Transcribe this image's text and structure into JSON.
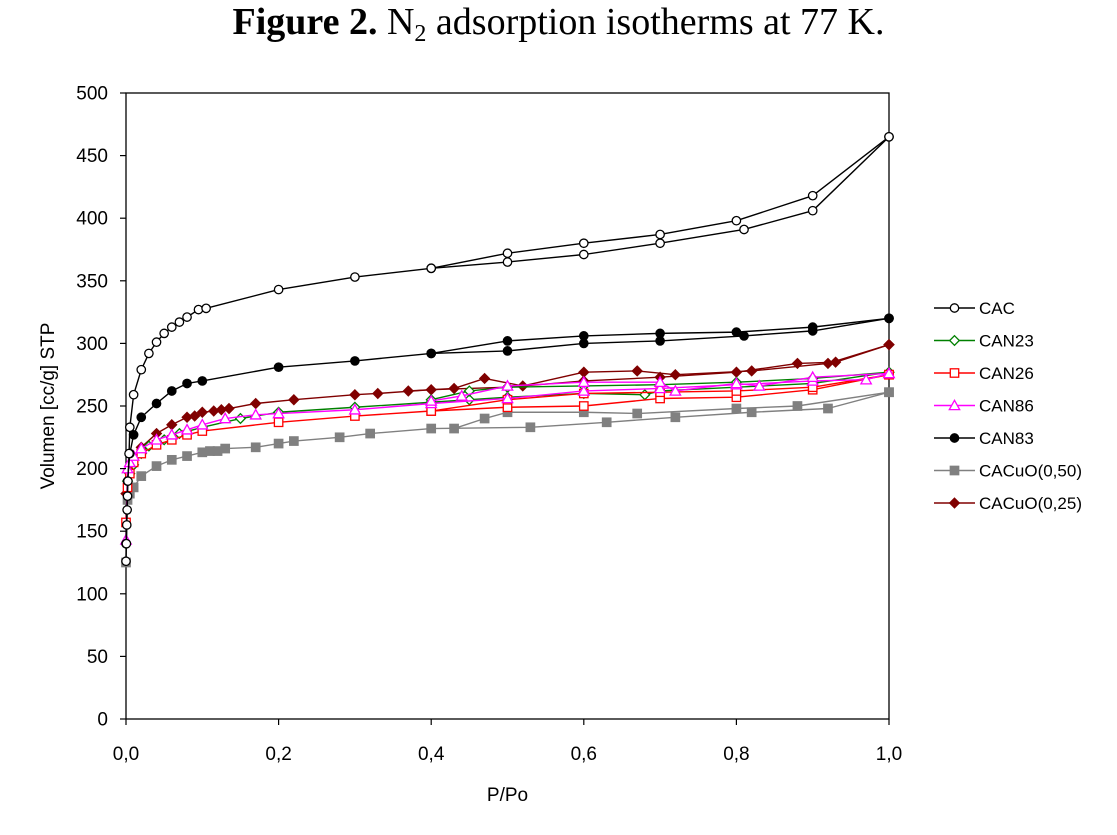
{
  "title": {
    "bold": "Figure 2.",
    "text_pre": " N",
    "subscript": "2",
    "text_post": " adsorption isotherms at 77 K."
  },
  "chart_data": {
    "type": "line",
    "xlabel": "P/Po",
    "ylabel": "Volumen [cc/g] STP",
    "xlim": [
      0,
      1
    ],
    "ylim": [
      0,
      500
    ],
    "xticks": [
      0,
      0.2,
      0.4,
      0.6,
      0.8,
      1.0
    ],
    "xtick_labels": [
      "0,0",
      "0,2",
      "0,4",
      "0,6",
      "0,8",
      "1,0"
    ],
    "yticks": [
      0,
      50,
      100,
      150,
      200,
      250,
      300,
      350,
      400,
      450,
      500
    ],
    "grid": false,
    "legend_position": "right",
    "series": [
      {
        "name": "CAC",
        "color": "#000000",
        "marker": "circle-open",
        "adsorption": [
          [
            0.0,
            126
          ],
          [
            0.0005,
            140
          ],
          [
            0.001,
            155
          ],
          [
            0.0015,
            167
          ],
          [
            0.002,
            178
          ],
          [
            0.0025,
            190
          ],
          [
            0.004,
            212
          ],
          [
            0.005,
            233
          ],
          [
            0.01,
            259
          ],
          [
            0.02,
            279
          ],
          [
            0.03,
            292
          ],
          [
            0.04,
            301
          ],
          [
            0.05,
            308
          ],
          [
            0.06,
            313
          ],
          [
            0.07,
            317
          ],
          [
            0.08,
            321
          ],
          [
            0.095,
            327
          ],
          [
            0.105,
            328
          ],
          [
            0.2,
            343
          ],
          [
            0.3,
            353
          ],
          [
            0.4,
            360
          ],
          [
            0.5,
            365
          ],
          [
            0.6,
            371
          ],
          [
            0.7,
            380
          ],
          [
            0.81,
            391
          ],
          [
            0.9,
            406
          ],
          [
            1.0,
            465
          ]
        ],
        "desorption": [
          [
            1.0,
            465
          ],
          [
            0.9,
            418
          ],
          [
            0.8,
            398
          ],
          [
            0.7,
            387
          ],
          [
            0.6,
            380
          ],
          [
            0.5,
            372
          ],
          [
            0.4,
            360
          ]
        ]
      },
      {
        "name": "CAN23",
        "color": "#008000",
        "marker": "diamond-open",
        "adsorption": [
          [
            0.0,
            140
          ],
          [
            0.002,
            190
          ],
          [
            0.005,
            196
          ],
          [
            0.01,
            203
          ],
          [
            0.02,
            212
          ],
          [
            0.03,
            218
          ],
          [
            0.05,
            223
          ],
          [
            0.07,
            228
          ],
          [
            0.1,
            233
          ],
          [
            0.15,
            240
          ],
          [
            0.2,
            245
          ],
          [
            0.3,
            249
          ],
          [
            0.4,
            253
          ],
          [
            0.45,
            255
          ],
          [
            0.5,
            257
          ],
          [
            0.6,
            260
          ],
          [
            0.68,
            259
          ],
          [
            0.7,
            262
          ],
          [
            0.8,
            265
          ],
          [
            0.9,
            268
          ],
          [
            1.0,
            277
          ]
        ],
        "desorption": [
          [
            1.0,
            277
          ],
          [
            0.9,
            272
          ],
          [
            0.8,
            269
          ],
          [
            0.7,
            267
          ],
          [
            0.6,
            266
          ],
          [
            0.5,
            265
          ],
          [
            0.45,
            262
          ],
          [
            0.4,
            255
          ]
        ]
      },
      {
        "name": "CAN26",
        "color": "#ff0000",
        "marker": "square-open",
        "adsorption": [
          [
            0.0,
            157
          ],
          [
            0.002,
            185
          ],
          [
            0.005,
            196
          ],
          [
            0.01,
            205
          ],
          [
            0.02,
            212
          ],
          [
            0.04,
            219
          ],
          [
            0.06,
            223
          ],
          [
            0.08,
            227
          ],
          [
            0.1,
            230
          ],
          [
            0.2,
            237
          ],
          [
            0.3,
            242
          ],
          [
            0.4,
            246
          ],
          [
            0.5,
            249
          ],
          [
            0.6,
            250
          ],
          [
            0.7,
            256
          ],
          [
            0.8,
            257
          ],
          [
            0.9,
            263
          ],
          [
            1.0,
            275
          ]
        ],
        "desorption": [
          [
            1.0,
            275
          ],
          [
            0.9,
            265
          ],
          [
            0.8,
            262
          ],
          [
            0.7,
            261
          ],
          [
            0.6,
            260
          ],
          [
            0.5,
            255
          ],
          [
            0.4,
            246
          ]
        ]
      },
      {
        "name": "CAN86",
        "color": "#ff00ff",
        "marker": "triangle-open",
        "adsorption": [
          [
            0.0,
            143
          ],
          [
            0.002,
            200
          ],
          [
            0.005,
            205
          ],
          [
            0.01,
            210
          ],
          [
            0.02,
            216
          ],
          [
            0.04,
            223
          ],
          [
            0.06,
            227
          ],
          [
            0.08,
            231
          ],
          [
            0.1,
            235
          ],
          [
            0.13,
            240
          ],
          [
            0.17,
            243
          ],
          [
            0.2,
            244
          ],
          [
            0.3,
            247
          ],
          [
            0.4,
            252
          ],
          [
            0.5,
            256
          ],
          [
            0.6,
            262
          ],
          [
            0.7,
            264
          ],
          [
            0.8,
            267
          ],
          [
            0.9,
            270
          ],
          [
            0.97,
            271
          ],
          [
            1.0,
            276
          ]
        ],
        "desorption": [
          [
            1.0,
            276
          ],
          [
            0.9,
            273
          ],
          [
            0.83,
            266
          ],
          [
            0.8,
            268
          ],
          [
            0.72,
            262
          ],
          [
            0.7,
            269
          ],
          [
            0.6,
            269
          ],
          [
            0.5,
            266
          ],
          [
            0.44,
            258
          ],
          [
            0.4,
            254
          ]
        ]
      },
      {
        "name": "CAN83",
        "color": "#000000",
        "marker": "circle-filled",
        "adsorption": [
          [
            0.0,
            140
          ],
          [
            0.002,
            190
          ],
          [
            0.005,
            212
          ],
          [
            0.01,
            227
          ],
          [
            0.02,
            241
          ],
          [
            0.04,
            252
          ],
          [
            0.06,
            262
          ],
          [
            0.08,
            268
          ],
          [
            0.1,
            270
          ],
          [
            0.2,
            281
          ],
          [
            0.3,
            286
          ],
          [
            0.4,
            292
          ],
          [
            0.5,
            294
          ],
          [
            0.6,
            300
          ],
          [
            0.7,
            302
          ],
          [
            0.81,
            306
          ],
          [
            0.9,
            310
          ],
          [
            1.0,
            320
          ]
        ],
        "desorption": [
          [
            1.0,
            320
          ],
          [
            0.9,
            313
          ],
          [
            0.8,
            309
          ],
          [
            0.7,
            308
          ],
          [
            0.6,
            306
          ],
          [
            0.5,
            302
          ],
          [
            0.4,
            292
          ]
        ]
      },
      {
        "name": "CACuO(0,50)",
        "color": "#808080",
        "marker": "square-filled",
        "adsorption": [
          [
            0.0,
            125
          ],
          [
            0.002,
            175
          ],
          [
            0.005,
            180
          ],
          [
            0.01,
            185
          ],
          [
            0.02,
            194
          ],
          [
            0.04,
            202
          ],
          [
            0.06,
            207
          ],
          [
            0.08,
            210
          ],
          [
            0.1,
            213
          ],
          [
            0.11,
            214
          ],
          [
            0.12,
            214
          ],
          [
            0.13,
            216
          ],
          [
            0.17,
            217
          ],
          [
            0.2,
            220
          ],
          [
            0.22,
            222
          ],
          [
            0.28,
            225
          ],
          [
            0.32,
            228
          ],
          [
            0.4,
            232
          ],
          [
            0.53,
            233
          ],
          [
            0.63,
            237
          ],
          [
            0.72,
            241
          ],
          [
            0.82,
            245
          ],
          [
            0.92,
            248
          ],
          [
            1.0,
            261
          ]
        ],
        "desorption": [
          [
            1.0,
            261
          ],
          [
            0.88,
            250
          ],
          [
            0.8,
            248
          ],
          [
            0.67,
            244
          ],
          [
            0.6,
            245
          ],
          [
            0.5,
            245
          ],
          [
            0.47,
            240
          ],
          [
            0.43,
            232
          ]
        ]
      },
      {
        "name": "CACuO(0,25)",
        "color": "#800000",
        "marker": "diamond-filled",
        "adsorption": [
          [
            0.0,
            180
          ],
          [
            0.005,
            200
          ],
          [
            0.01,
            207
          ],
          [
            0.02,
            217
          ],
          [
            0.04,
            228
          ],
          [
            0.06,
            235
          ],
          [
            0.08,
            241
          ],
          [
            0.09,
            242
          ],
          [
            0.1,
            245
          ],
          [
            0.115,
            246
          ],
          [
            0.125,
            247
          ],
          [
            0.135,
            248
          ],
          [
            0.17,
            252
          ],
          [
            0.22,
            255
          ],
          [
            0.3,
            259
          ],
          [
            0.33,
            260
          ],
          [
            0.4,
            263
          ],
          [
            0.5,
            265
          ],
          [
            0.6,
            270
          ],
          [
            0.7,
            273
          ],
          [
            0.8,
            277
          ],
          [
            0.88,
            284
          ],
          [
            0.93,
            285
          ],
          [
            1.0,
            299
          ]
        ],
        "desorption": [
          [
            1.0,
            299
          ],
          [
            0.92,
            284
          ],
          [
            0.82,
            278
          ],
          [
            0.72,
            275
          ],
          [
            0.67,
            278
          ],
          [
            0.6,
            277
          ],
          [
            0.52,
            266
          ],
          [
            0.47,
            272
          ],
          [
            0.43,
            264
          ],
          [
            0.37,
            262
          ]
        ]
      }
    ]
  }
}
